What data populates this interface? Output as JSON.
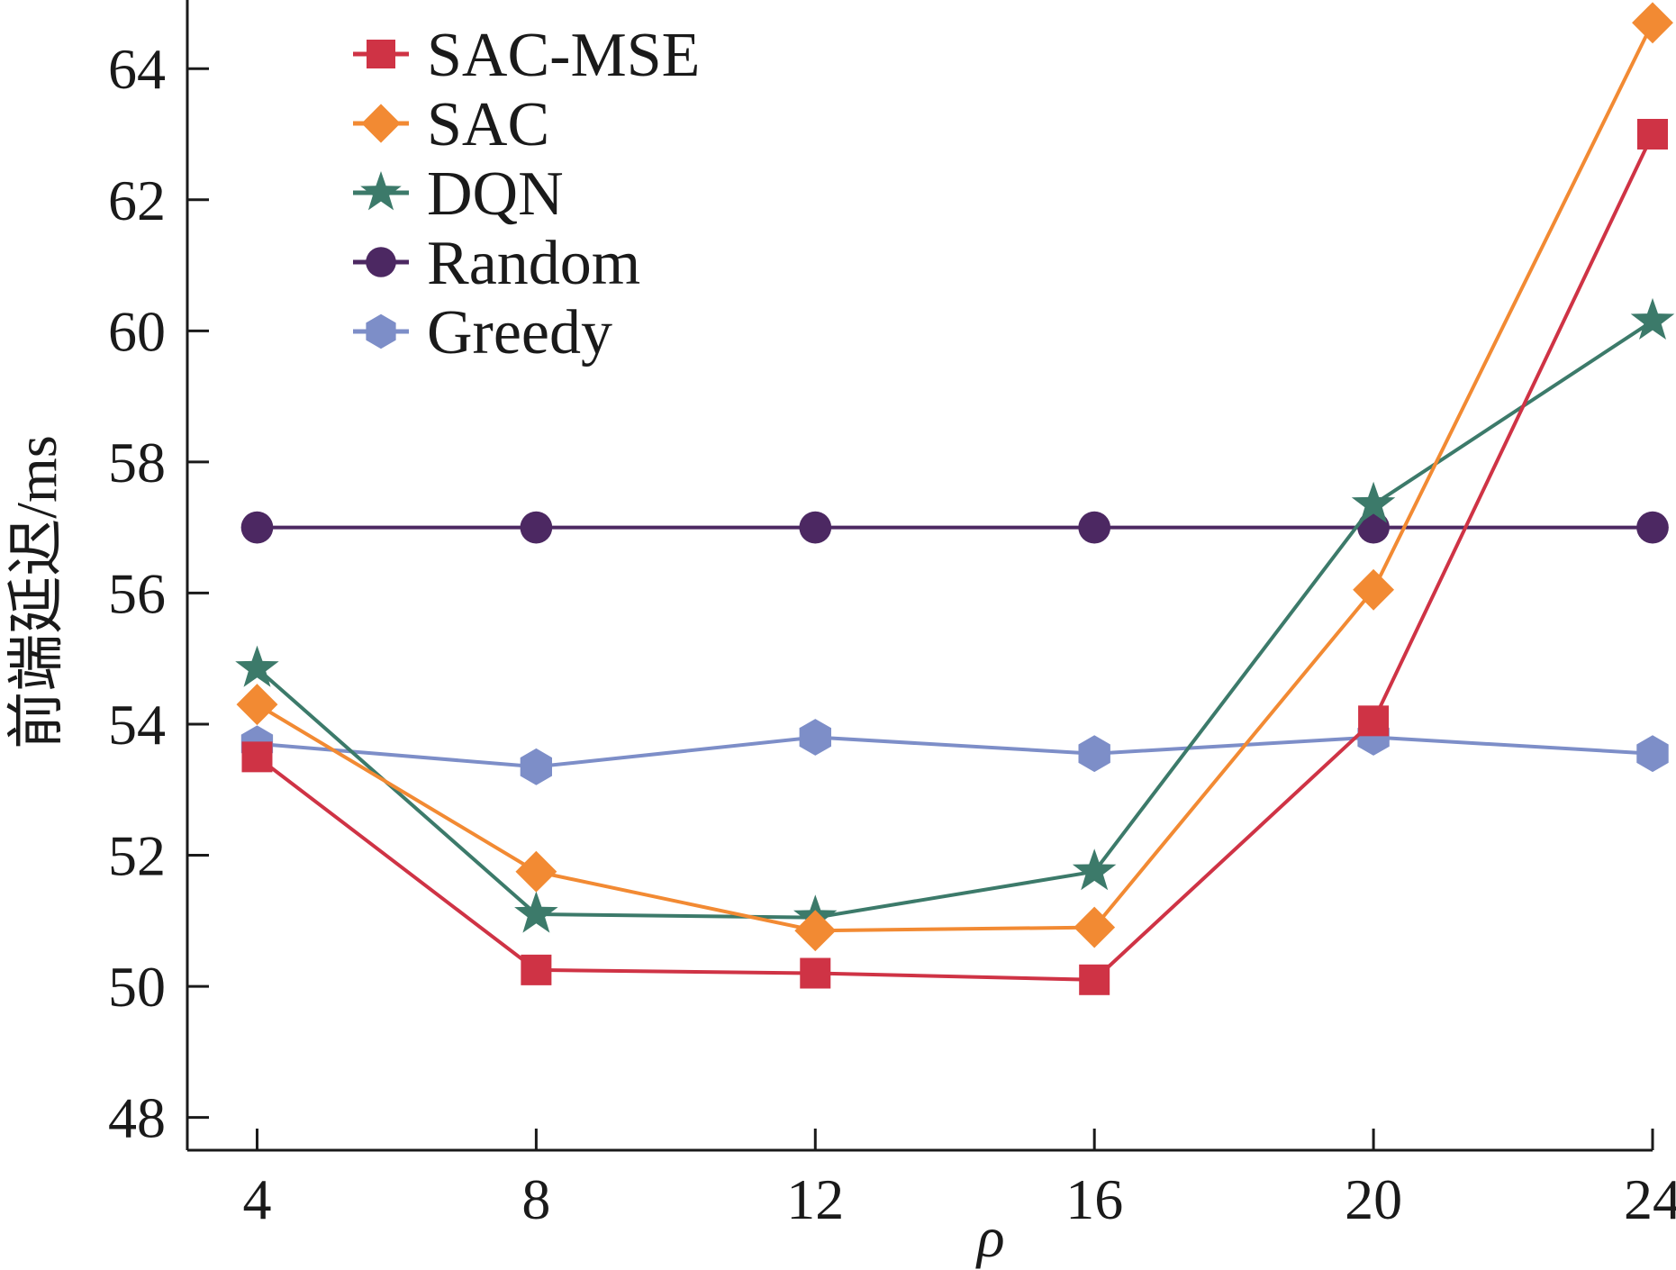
{
  "chart_data": {
    "type": "line",
    "title": "",
    "xlabel": "ρ",
    "ylabel": "前端延迟/ms",
    "x": [
      4,
      8,
      12,
      16,
      20,
      24
    ],
    "xticks": [
      "4",
      "8",
      "12",
      "16",
      "20",
      "24"
    ],
    "xlim": [
      3,
      24
    ],
    "yticks": [
      "48",
      "50",
      "52",
      "54",
      "56",
      "58",
      "60",
      "62",
      "64"
    ],
    "ylim": [
      47.5,
      64.8
    ],
    "grid": false,
    "legend_position": "top-left",
    "series": [
      {
        "name": "SAC-MSE",
        "color": "#cf3345",
        "marker": "square",
        "values": [
          53.5,
          50.25,
          50.2,
          50.1,
          54.05,
          63.0
        ]
      },
      {
        "name": "SAC",
        "color": "#f28a33",
        "marker": "diamond",
        "values": [
          54.3,
          51.75,
          50.85,
          50.9,
          56.05,
          64.7
        ]
      },
      {
        "name": "DQN",
        "color": "#3c7a6a",
        "marker": "star",
        "values": [
          54.85,
          51.1,
          51.05,
          51.75,
          57.35,
          60.15
        ]
      },
      {
        "name": "Random",
        "color": "#4c2862",
        "marker": "circle",
        "values": [
          57.0,
          57.0,
          57.0,
          57.0,
          57.0,
          57.0
        ]
      },
      {
        "name": "Greedy",
        "color": "#7d8ec8",
        "marker": "hexagon",
        "values": [
          53.7,
          53.35,
          53.8,
          53.55,
          53.8,
          53.55
        ]
      }
    ]
  }
}
